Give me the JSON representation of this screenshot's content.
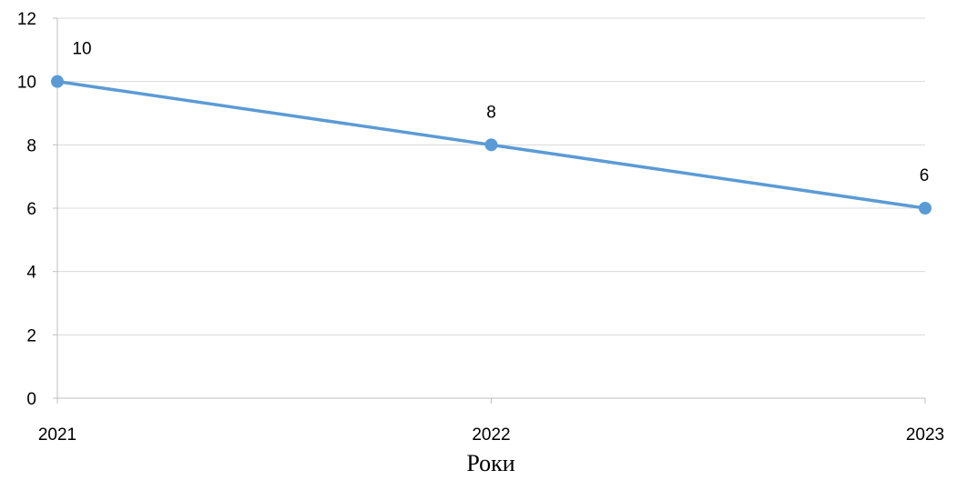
{
  "chart_data": {
    "type": "line",
    "title": "",
    "xlabel": "Роки",
    "ylabel": "",
    "categories": [
      "2021",
      "2022",
      "2023"
    ],
    "series": [
      {
        "values": [
          10,
          8,
          6
        ],
        "color": "#5B9BD5",
        "data_labels": true
      }
    ],
    "ylim": [
      0,
      12
    ],
    "yticks": [
      0,
      2,
      4,
      6,
      8,
      10,
      12
    ],
    "grid": true,
    "legend": "none",
    "colors": {
      "line": "#5B9BD5",
      "grid": "#D9D9D9",
      "axis": "#BFBFBF"
    }
  }
}
